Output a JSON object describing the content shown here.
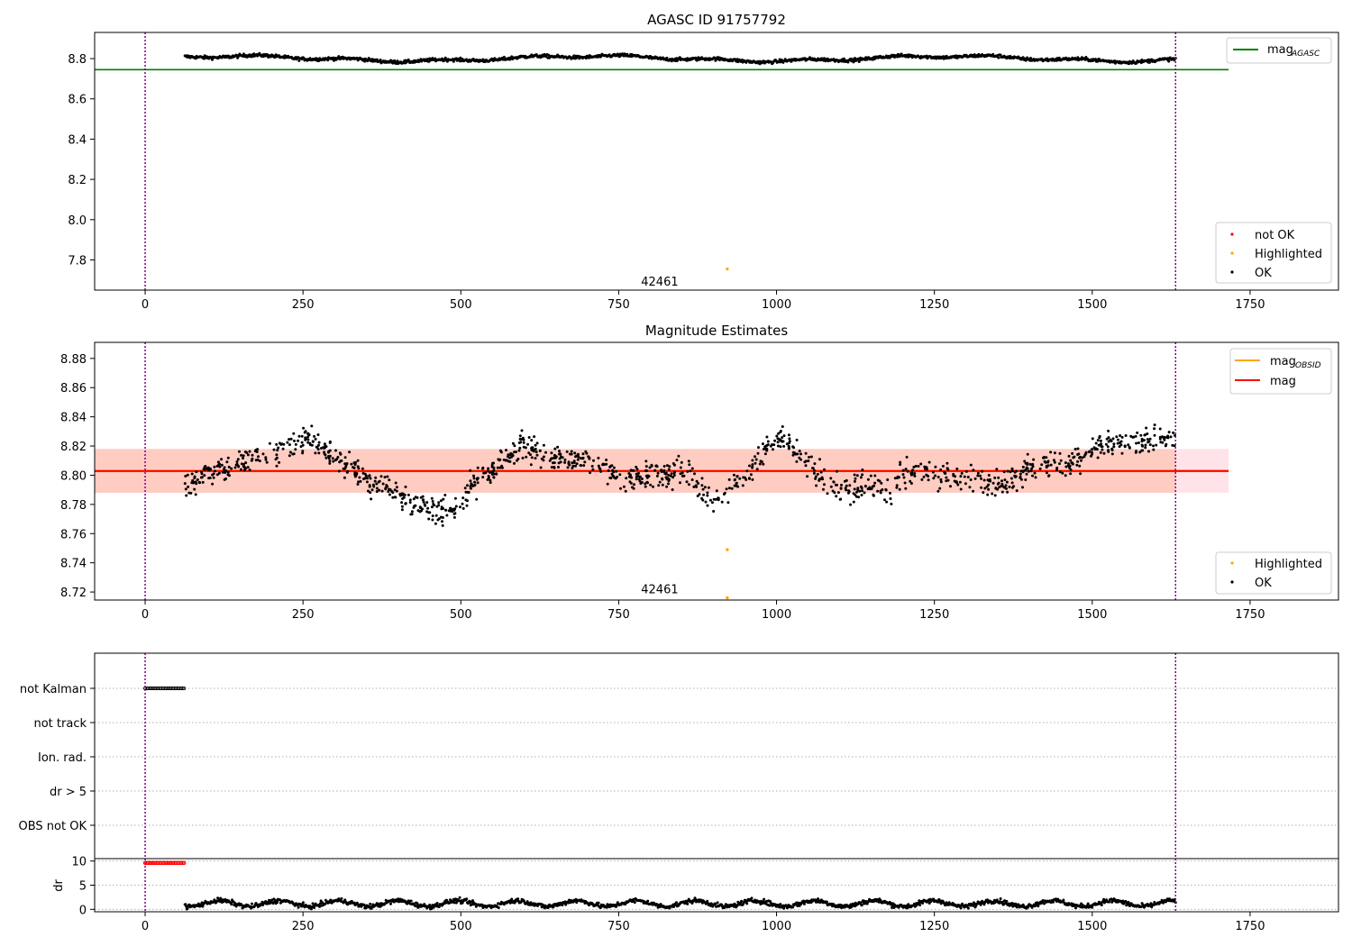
{
  "title": "AGASC ID 91757792",
  "chart_data": [
    {
      "type": "scatter",
      "title": "AGASC ID 91757792",
      "xlim": [
        -80,
        1890
      ],
      "ylim": [
        7.65,
        8.93
      ],
      "xticks": [
        0,
        250,
        500,
        750,
        1000,
        1250,
        1500,
        1750
      ],
      "yticks": [
        7.8,
        8.0,
        8.2,
        8.4,
        8.6,
        8.8
      ],
      "grid": false,
      "vlines": [
        0,
        1632
      ],
      "hlines": [
        {
          "name": "mag",
          "subscript": "AGASC",
          "y": 8.745,
          "x_range": [
            -80,
            1716
          ],
          "color": "#008000"
        }
      ],
      "annotations": [
        {
          "text": "42461",
          "x": 815,
          "y": 7.69
        }
      ],
      "series_generation": {
        "x_start": 63,
        "x_end": 1632,
        "count": 1450,
        "base": 8.8,
        "noise": 0.008
      },
      "highlight_points": [
        {
          "x": 922,
          "y": 7.755
        }
      ],
      "legends": [
        {
          "position": "top-right",
          "entries": [
            {
              "label": "mag",
              "subscript": "AGASC",
              "kind": "line",
              "color": "#008000"
            }
          ]
        },
        {
          "position": "bottom-right",
          "entries": [
            {
              "label": "not OK",
              "kind": "marker",
              "color": "#ff0000"
            },
            {
              "label": "Highlighted",
              "kind": "marker",
              "color": "#ffa500"
            },
            {
              "label": "OK",
              "kind": "marker",
              "color": "#000000"
            }
          ]
        }
      ]
    },
    {
      "type": "scatter",
      "title": "Magnitude Estimates",
      "xlim": [
        -80,
        1890
      ],
      "ylim": [
        8.7145,
        8.891
      ],
      "xticks": [
        0,
        250,
        500,
        750,
        1000,
        1250,
        1500,
        1750
      ],
      "yticks": [
        8.72,
        8.74,
        8.76,
        8.78,
        8.8,
        8.82,
        8.84,
        8.86,
        8.88
      ],
      "grid": false,
      "vlines": [
        0,
        1632
      ],
      "hlines": [
        {
          "name": "mag",
          "subscript": "OBSID",
          "y": 8.8033,
          "x_range": [
            -80,
            1716
          ],
          "color": "#ffa500"
        },
        {
          "name": "mag",
          "y": 8.8028,
          "x_range": [
            -80,
            1716
          ],
          "color": "#ff0000"
        }
      ],
      "bands": [
        {
          "y_range": [
            8.788,
            8.818
          ],
          "x_range": [
            -80,
            1716
          ],
          "color": "#ffc0cb",
          "opacity": 0.45
        },
        {
          "y_range": [
            8.788,
            8.818
          ],
          "x_range": [
            -80,
            1632
          ],
          "color": "#ffa07a",
          "opacity": 0.35
        }
      ],
      "annotations": [
        {
          "text": "42461",
          "x": 815,
          "y": 8.7215
        }
      ],
      "segment_x": [
        63,
        180,
        260,
        340,
        450,
        490,
        520,
        600,
        640,
        700,
        760,
        860,
        900,
        940,
        1000,
        1050,
        1080,
        1180,
        1220,
        1250,
        1340,
        1360,
        1420,
        1460,
        1520,
        1632
      ],
      "segment_mean": [
        8.795,
        8.812,
        8.825,
        8.799,
        8.777,
        8.776,
        8.793,
        8.822,
        8.812,
        8.812,
        8.797,
        8.801,
        8.784,
        8.795,
        8.828,
        8.809,
        8.792,
        8.79,
        8.805,
        8.8,
        8.795,
        8.795,
        8.808,
        8.807,
        8.822,
        8.825
      ],
      "noise": 0.006,
      "highlight_points": [
        {
          "x": 922,
          "y": 8.749
        },
        {
          "x": 922,
          "y": 8.716
        }
      ],
      "legends": [
        {
          "position": "top-right",
          "entries": [
            {
              "label": "mag",
              "subscript": "OBSID",
              "kind": "line",
              "color": "#ffa500"
            },
            {
              "label": "mag",
              "kind": "line",
              "color": "#ff0000"
            }
          ]
        },
        {
          "position": "bottom-right",
          "entries": [
            {
              "label": "Highlighted",
              "kind": "marker",
              "color": "#ffa500"
            },
            {
              "label": "OK",
              "kind": "marker",
              "color": "#000000"
            }
          ]
        }
      ]
    },
    {
      "type": "scatter",
      "title": "",
      "xlim": [
        -80,
        1890
      ],
      "categories": [
        "not Kalman",
        "not track",
        "Ion. rad.",
        "dr > 5",
        "OBS not OK"
      ],
      "grid": true,
      "vlines": [
        0,
        1632
      ],
      "flag_points": [
        {
          "category": "not Kalman",
          "x_range": [
            0,
            63
          ],
          "color": "#000000"
        }
      ]
    },
    {
      "type": "scatter",
      "title": "",
      "xlim": [
        -80,
        1890
      ],
      "ylim": [
        -0.5,
        10.5
      ],
      "xticks": [
        0,
        250,
        500,
        750,
        1000,
        1250,
        1500,
        1750
      ],
      "yticks": [
        0,
        5,
        10
      ],
      "ylabel": "dr",
      "grid": true,
      "vlines": [
        0,
        1632
      ],
      "red_points": {
        "x_range": [
          0,
          63
        ],
        "y": 9.6
      },
      "series_generation": {
        "x_start": 63,
        "x_end": 1632,
        "count": 1450,
        "base": 1.2,
        "noise": 0.6
      }
    }
  ],
  "colors": {
    "vline": "#800080",
    "band_outer": "#ffc0cb",
    "band_inner": "#ffa07a",
    "ok": "#000000",
    "highlighted": "#ffa500",
    "not_ok": "#ff0000"
  }
}
